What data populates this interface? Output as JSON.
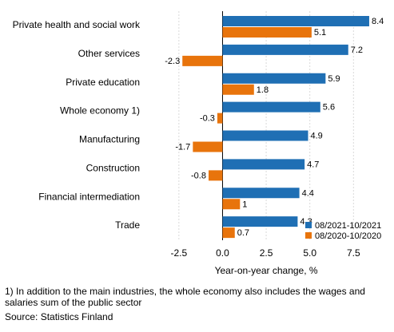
{
  "chart_data": {
    "type": "bar",
    "orientation": "horizontal",
    "categories": [
      "Private health and social work",
      "Other services",
      "Private education",
      "Whole economy 1)",
      "Manufacturing",
      "Construction",
      "Financial intermediation",
      "Trade"
    ],
    "series": [
      {
        "name": "08/2021-10/2021",
        "color": "#1f6fb4",
        "values": [
          8.4,
          7.2,
          5.9,
          5.6,
          4.9,
          4.7,
          4.4,
          4.3
        ]
      },
      {
        "name": "08/2020-10/2020",
        "color": "#e8740c",
        "values": [
          5.1,
          -2.3,
          1.8,
          -0.3,
          -1.7,
          -0.8,
          1.0,
          0.7
        ]
      }
    ],
    "xlabel": "Year-on-year change, %",
    "xlim": [
      -3.5,
      9.5
    ],
    "xticks": [
      -2.5,
      0.0,
      2.5,
      5.0,
      7.5
    ],
    "xtick_labels": [
      "-2.5",
      "0.0",
      "2.5",
      "5.0",
      "7.5"
    ],
    "grid": "vertical",
    "legend_position": "bottom-right"
  },
  "footnote": "1) In addition to the main industries, the whole economy also includes the wages and salaries sum of the public sector",
  "source": "Source: Statistics Finland"
}
